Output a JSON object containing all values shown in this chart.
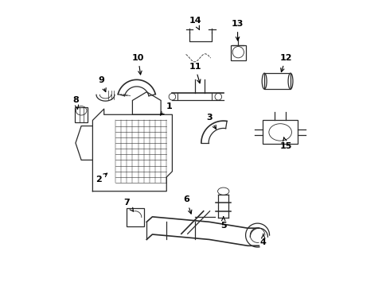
{
  "bg_color": "#ffffff",
  "line_color": "#2a2a2a",
  "label_color": "#000000",
  "label_fontsize": 8,
  "fig_width": 4.9,
  "fig_height": 3.6,
  "dpi": 100,
  "label_data": {
    "1": [
      0.41,
      0.63,
      0.37,
      0.59
    ],
    "2": [
      0.16,
      0.37,
      0.2,
      0.4
    ],
    "3": [
      0.55,
      0.59,
      0.58,
      0.54
    ],
    "4": [
      0.74,
      0.15,
      0.74,
      0.18
    ],
    "5": [
      0.6,
      0.21,
      0.6,
      0.25
    ],
    "6": [
      0.47,
      0.3,
      0.49,
      0.24
    ],
    "7": [
      0.26,
      0.29,
      0.29,
      0.25
    ],
    "8": [
      0.08,
      0.65,
      0.09,
      0.61
    ],
    "9": [
      0.17,
      0.72,
      0.19,
      0.67
    ],
    "10": [
      0.3,
      0.8,
      0.31,
      0.73
    ],
    "11": [
      0.5,
      0.77,
      0.52,
      0.7
    ],
    "12": [
      0.82,
      0.8,
      0.8,
      0.74
    ],
    "13": [
      0.65,
      0.92,
      0.65,
      0.85
    ],
    "14": [
      0.5,
      0.93,
      0.52,
      0.89
    ],
    "15": [
      0.82,
      0.49,
      0.81,
      0.53
    ]
  }
}
